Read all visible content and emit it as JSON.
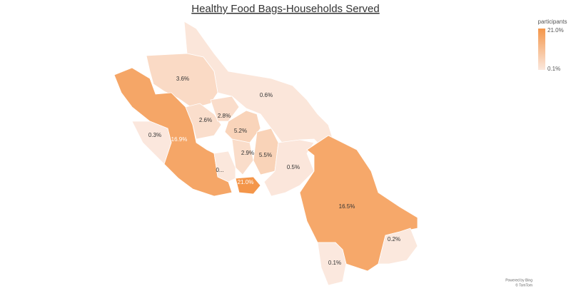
{
  "header": {
    "title": "Healthy Food Bags-Households Served"
  },
  "legend": {
    "title": "participants",
    "max": {
      "value": 21.0,
      "label": "21.0%"
    },
    "min": {
      "value": 0.1,
      "label": "0.1%"
    }
  },
  "regions": [
    {
      "label": "0.6%",
      "value": 0.6
    },
    {
      "label": "3.6%",
      "value": 3.6
    },
    {
      "label": "16.9%",
      "value": 16.9
    },
    {
      "label": "0.3%",
      "value": 0.3
    },
    {
      "label": "2.6%",
      "value": 2.6
    },
    {
      "label": "2.8%",
      "value": 2.8
    },
    {
      "label": "5.2%",
      "value": 5.2
    },
    {
      "label": "2.9%",
      "value": 2.9
    },
    {
      "label": "5.5%",
      "value": 5.5
    },
    {
      "label": "0.5%",
      "value": 0.5
    },
    {
      "label": "21.0%",
      "value": 21.0
    },
    {
      "label": "0...",
      "value": 0.4
    },
    {
      "label": "16.5%",
      "value": 16.5
    },
    {
      "label": "0.2%",
      "value": 0.2
    },
    {
      "label": "0.1%",
      "value": 0.1
    }
  ],
  "footer": {
    "line1": "Powered by Bing",
    "line2": "© TomTom"
  }
}
